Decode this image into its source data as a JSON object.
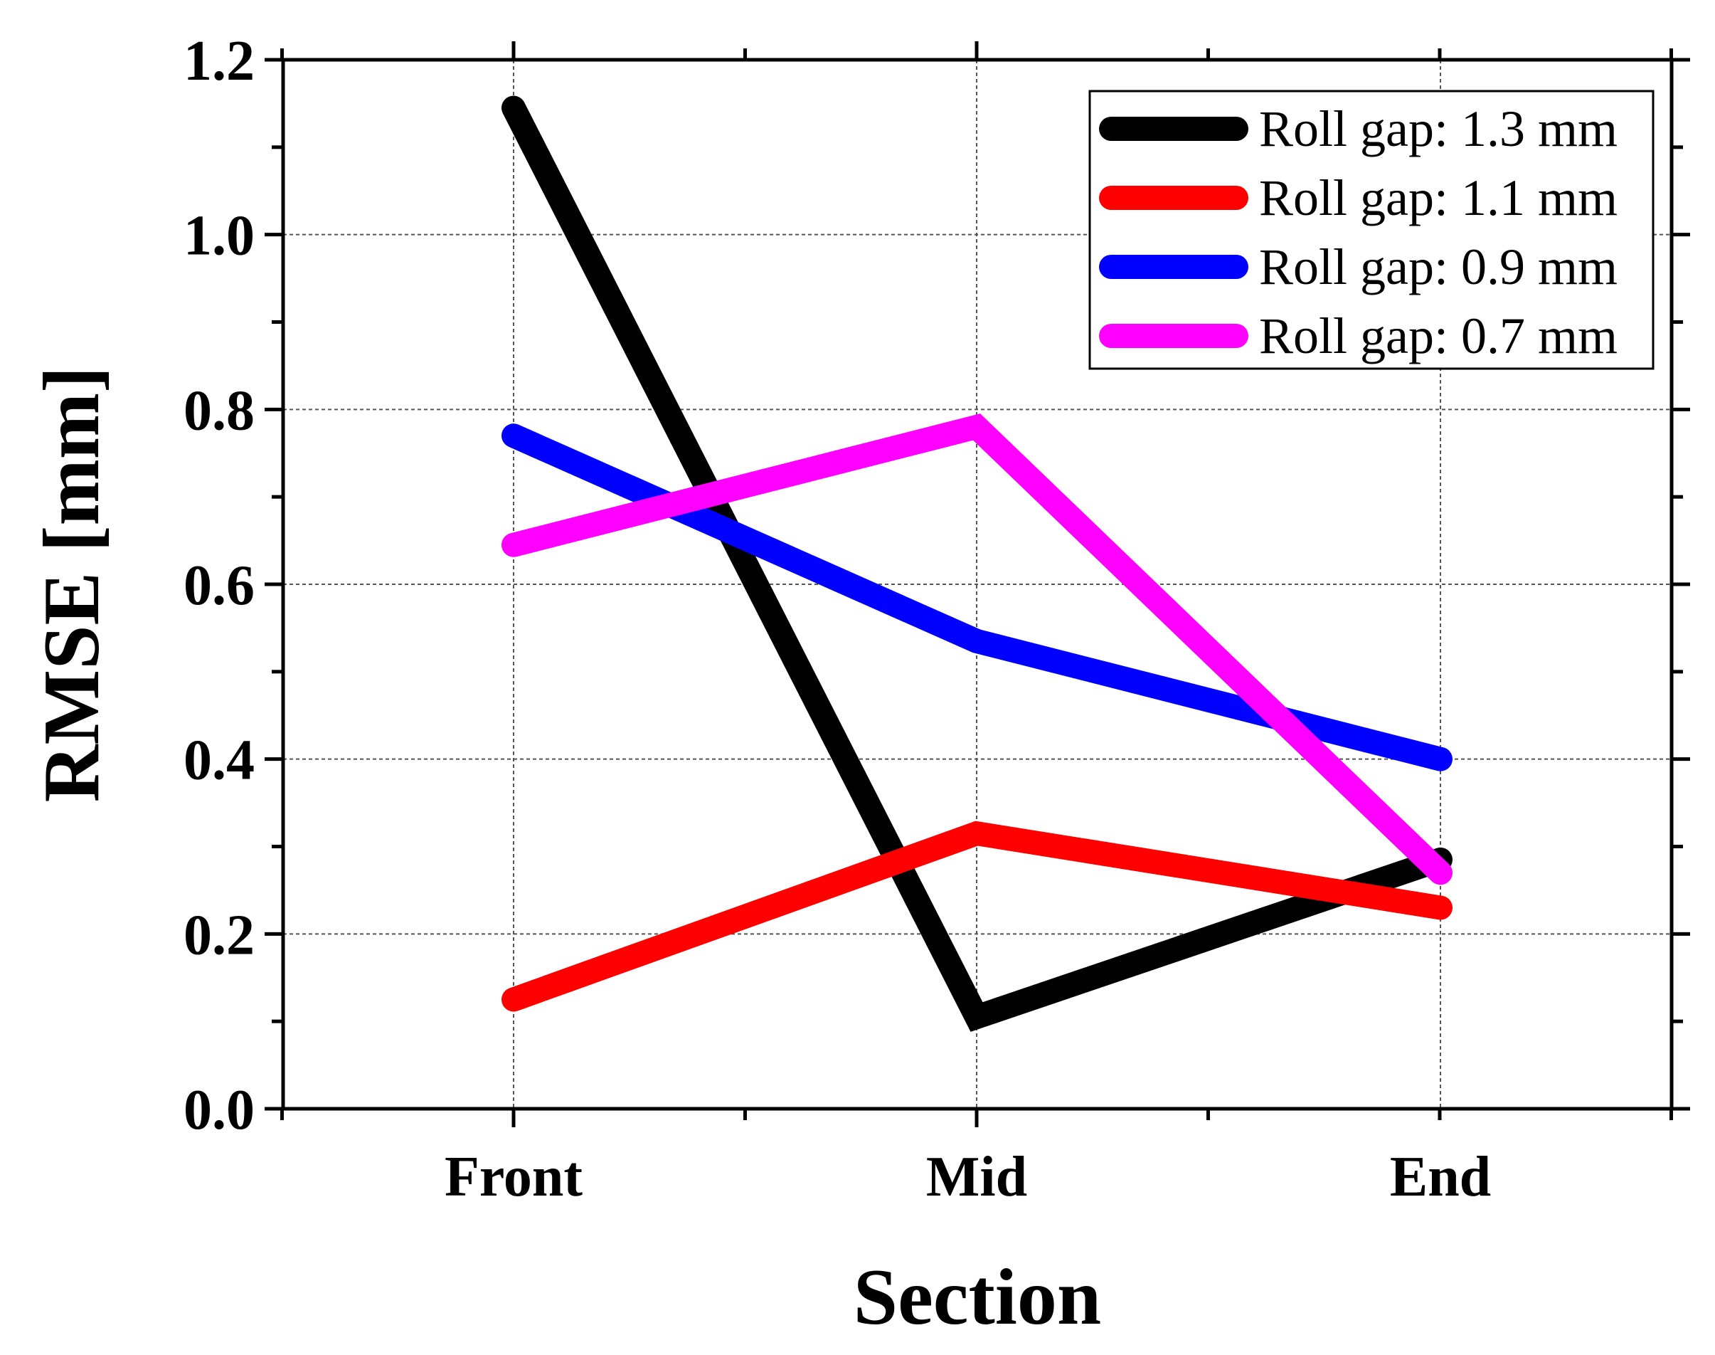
{
  "chart_data": {
    "type": "line",
    "title": "",
    "xlabel": "Section",
    "ylabel": "RMSE [mm]",
    "categories": [
      "Front",
      "Mid",
      "End"
    ],
    "ylim": [
      0.0,
      1.2
    ],
    "yticks": [
      "0.0",
      "0.2",
      "0.4",
      "0.6",
      "0.8",
      "1.0",
      "1.2"
    ],
    "grid": true,
    "legend_position": "top-right",
    "series": [
      {
        "name": "Roll gap: 1.3 mm",
        "color": "#000000",
        "values": [
          1.145,
          0.105,
          0.285
        ]
      },
      {
        "name": "Roll gap: 1.1 mm",
        "color": "#ff0000",
        "values": [
          0.125,
          0.315,
          0.23
        ]
      },
      {
        "name": "Roll gap: 0.9 mm",
        "color": "#0000ff",
        "values": [
          0.77,
          0.535,
          0.4
        ]
      },
      {
        "name": "Roll gap: 0.7 mm",
        "color": "#ff00ff",
        "values": [
          0.645,
          0.78,
          0.27
        ]
      }
    ]
  }
}
